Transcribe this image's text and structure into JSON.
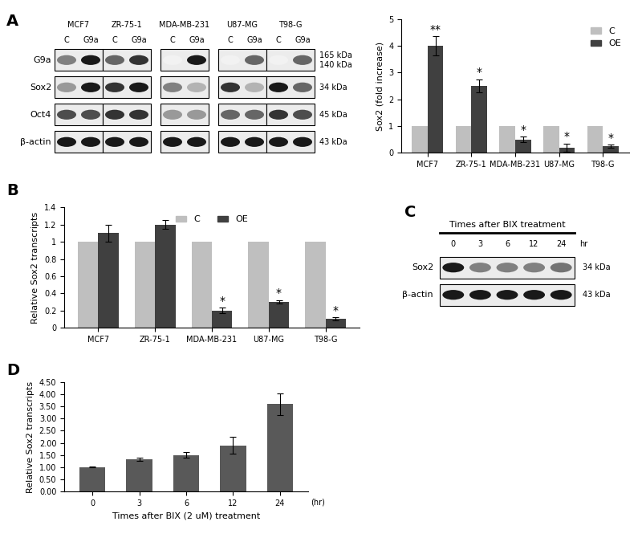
{
  "blots": [
    {
      "panel": "A",
      "rows": [
        "G9a",
        "Sox2",
        "Oct4",
        "β-actin"
      ],
      "groups": [
        {
          "name": "MCF7",
          "lanes": [
            "C",
            "G9a"
          ],
          "bands": [
            [
              0.5,
              0.9
            ],
            [
              0.4,
              0.9
            ],
            [
              0.7,
              0.7
            ],
            [
              0.9,
              0.9
            ]
          ]
        },
        {
          "name": "ZR-75-1",
          "lanes": [
            "C",
            "G9a"
          ],
          "bands": [
            [
              0.6,
              0.8
            ],
            [
              0.8,
              0.9
            ],
            [
              0.8,
              0.8
            ],
            [
              0.9,
              0.9
            ]
          ]
        },
        {
          "name": "MDA-MB-231",
          "lanes": [
            "C",
            "G9a"
          ],
          "bands": [
            [
              0.05,
              0.9
            ],
            [
              0.5,
              0.3
            ],
            [
              0.4,
              0.4
            ],
            [
              0.9,
              0.9
            ]
          ]
        },
        {
          "name": "U87-MG",
          "lanes": [
            "C",
            "G9a"
          ],
          "bands": [
            [
              0.05,
              0.6
            ],
            [
              0.8,
              0.3
            ],
            [
              0.6,
              0.6
            ],
            [
              0.9,
              0.9
            ]
          ]
        },
        {
          "name": "T98-G",
          "lanes": [
            "C",
            "G9a"
          ],
          "bands": [
            [
              0.05,
              0.6
            ],
            [
              0.9,
              0.6
            ],
            [
              0.8,
              0.7
            ],
            [
              0.9,
              0.9
            ]
          ]
        }
      ],
      "markers": [
        {
          "label": "165 kDa",
          "row": "G9a"
        },
        {
          "label": "140 kDa",
          "row": "G9a"
        },
        {
          "label": "34 kDa",
          "row": "Sox2"
        },
        {
          "label": "45 kDa",
          "row": "Oct4"
        },
        {
          "label": "43 kDa",
          "row": "β-actin"
        }
      ]
    },
    {
      "panel": "C",
      "title": "Times after BIX treatment",
      "lanes": [
        "0",
        "3",
        "6",
        "12",
        "24"
      ],
      "lane_unit": "hr",
      "rows": [
        "Sox2",
        "β-actin"
      ],
      "bands": [
        [
          0.9,
          0.5,
          0.5,
          0.5,
          0.55
        ],
        [
          0.9,
          0.9,
          0.9,
          0.9,
          0.9
        ]
      ],
      "markers": [
        {
          "label": "34 kDa",
          "row": "Sox2"
        },
        {
          "label": "43 kDa",
          "row": "β-actin"
        }
      ]
    }
  ],
  "chart_data": [
    {
      "type": "bar",
      "categories": [
        "MCF7",
        "ZR-75-1",
        "MDA-MB-231",
        "U87-MG",
        "T98-G"
      ],
      "y_label": "Sox2 (fold increase)",
      "ylim": [
        0,
        5
      ],
      "yticks": [
        0,
        1,
        2,
        3,
        4,
        5
      ],
      "legend": "upper right",
      "series": [
        {
          "name": "C",
          "color": "#bfbfbf",
          "values": [
            1,
            1,
            1,
            1,
            1
          ]
        },
        {
          "name": "OE",
          "color": "#404040",
          "values": [
            4.0,
            2.5,
            0.5,
            0.2,
            0.25
          ],
          "errors": [
            0.35,
            0.25,
            0.1,
            0.15,
            0.05
          ],
          "significance": [
            "**",
            "*",
            "*",
            "*",
            "*"
          ]
        }
      ]
    },
    {
      "type": "bar",
      "panel": "B",
      "categories": [
        "MCF7",
        "ZR-75-1",
        "MDA-MB-231",
        "U87-MG",
        "T98-G"
      ],
      "y_label": "Relative Sox2 transcripts",
      "ylim": [
        0,
        1.4
      ],
      "yticks": [
        0,
        0.2,
        0.4,
        0.6,
        0.8,
        1,
        1.2,
        1.4
      ],
      "legend": "upper center",
      "series": [
        {
          "name": "C",
          "color": "#bfbfbf",
          "values": [
            1,
            1,
            1,
            1,
            1
          ]
        },
        {
          "name": "OE",
          "color": "#404040",
          "values": [
            1.1,
            1.2,
            0.2,
            0.3,
            0.1
          ],
          "errors": [
            0.1,
            0.05,
            0.03,
            0.02,
            0.02
          ],
          "significance": [
            null,
            null,
            "*",
            "*",
            "*"
          ]
        }
      ]
    },
    {
      "type": "bar",
      "panel": "D",
      "categories": [
        "0",
        "3",
        "6",
        "12",
        "24"
      ],
      "x_label": "Times after BIX (2 uM) treatment",
      "x_unit": "(hr)",
      "y_label": "Relative Sox2 transcripts",
      "ylim": [
        0,
        4.5
      ],
      "yticks": [
        {
          "value": 0,
          "label": "0.00"
        },
        {
          "value": 0.5,
          "label": "0.50"
        },
        {
          "value": 1,
          "label": "1.00"
        },
        {
          "value": 1.5,
          "label": "1.50"
        },
        {
          "value": 2,
          "label": "2.00"
        },
        {
          "value": 2.5,
          "label": "2.50"
        },
        {
          "value": 3,
          "label": "3.00"
        },
        {
          "value": 3.5,
          "label": "3.50"
        },
        {
          "value": 4,
          "label": "4.00"
        },
        {
          "value": 4.5,
          "label": "4.50"
        }
      ],
      "color": "#595959",
      "values": [
        1.0,
        1.33,
        1.5,
        1.9,
        3.6
      ],
      "errors": [
        0.02,
        0.07,
        0.12,
        0.35,
        0.45
      ]
    }
  ]
}
